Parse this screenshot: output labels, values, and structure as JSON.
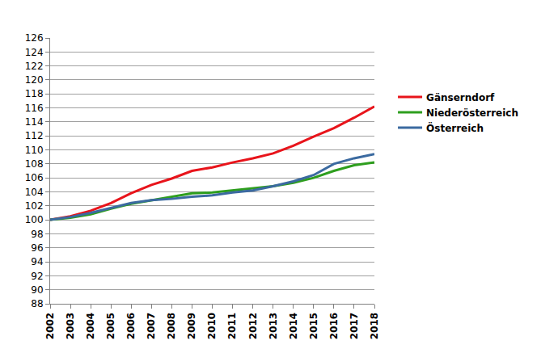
{
  "chart_data": {
    "type": "line",
    "x": [
      2002,
      2003,
      2004,
      2005,
      2006,
      2007,
      2008,
      2009,
      2010,
      2011,
      2012,
      2013,
      2014,
      2015,
      2016,
      2017,
      2018
    ],
    "series": [
      {
        "name": "Gänserndorf",
        "color": "#e8141b",
        "values": [
          100,
          100.5,
          101.3,
          102.4,
          103.8,
          105.0,
          105.9,
          107.0,
          107.5,
          108.2,
          108.8,
          109.5,
          110.6,
          111.9,
          113.1,
          114.6,
          116.2
        ]
      },
      {
        "name": "Niederösterreich",
        "color": "#2e9e1e",
        "values": [
          100,
          100.3,
          100.8,
          101.6,
          102.3,
          102.8,
          103.3,
          103.8,
          103.9,
          104.2,
          104.5,
          104.8,
          105.3,
          106.0,
          107.0,
          107.8,
          108.2
        ]
      },
      {
        "name": "Österreich",
        "color": "#3b6aa0",
        "values": [
          100,
          100.4,
          101.0,
          101.7,
          102.4,
          102.8,
          103.0,
          103.3,
          103.5,
          103.9,
          104.2,
          104.8,
          105.5,
          106.4,
          108.0,
          108.8,
          109.4
        ]
      }
    ],
    "xlim": [
      2002,
      2018
    ],
    "xticks": [
      2002,
      2003,
      2004,
      2005,
      2006,
      2007,
      2008,
      2009,
      2010,
      2011,
      2012,
      2013,
      2014,
      2015,
      2016,
      2017,
      2018
    ],
    "ylim": [
      88,
      126
    ],
    "yticks": [
      88,
      90,
      92,
      94,
      96,
      98,
      100,
      102,
      104,
      106,
      108,
      110,
      112,
      114,
      116,
      118,
      120,
      122,
      124,
      126
    ],
    "grid": true,
    "legend": "right"
  }
}
